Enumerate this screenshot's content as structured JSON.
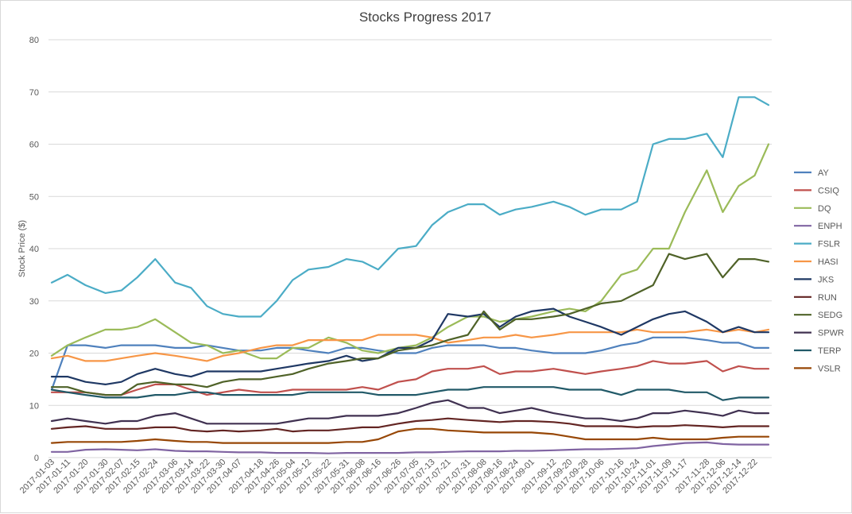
{
  "chart_data": {
    "type": "line",
    "title": "Stocks Progress 2017",
    "xlabel": "",
    "ylabel": "Stock Price ($)",
    "ylim": [
      0,
      80
    ],
    "yticks": [
      0,
      10,
      20,
      30,
      40,
      50,
      60,
      70,
      80
    ],
    "grid": true,
    "legend_position": "right",
    "x_tick_labels": [
      "2017-01-03",
      "2017-01-11",
      "2017-01-20",
      "2017-01-30",
      "2017-02-07",
      "2017-02-15",
      "2017-02-24",
      "2017-03-06",
      "2017-03-14",
      "2017-03-22",
      "2017-03-30",
      "2017-04-07",
      "2017-04-18",
      "2017-04-26",
      "2017-05-04",
      "2017-05-12",
      "2017-05-22",
      "2017-05-31",
      "2017-06-08",
      "2017-06-16",
      "2017-06-26",
      "2017-07-05",
      "2017-07-13",
      "2017-07-21",
      "2017-07-31",
      "2017-08-08",
      "2017-08-16",
      "2017-08-24",
      "2017-09-01",
      "2017-09-12",
      "2017-09-20",
      "2017-09-28",
      "2017-10-06",
      "2017-10-16",
      "2017-10-24",
      "2017-11-01",
      "2017-11-09",
      "2017-11-17",
      "2017-11-28",
      "2017-12-06",
      "2017-12-14",
      "2017-12-22"
    ],
    "x": [
      "2017-01-03",
      "2017-01-11",
      "2017-01-20",
      "2017-01-30",
      "2017-02-07",
      "2017-02-15",
      "2017-02-24",
      "2017-03-06",
      "2017-03-14",
      "2017-03-22",
      "2017-03-30",
      "2017-04-07",
      "2017-04-18",
      "2017-04-26",
      "2017-05-04",
      "2017-05-12",
      "2017-05-22",
      "2017-05-31",
      "2017-06-08",
      "2017-06-16",
      "2017-06-26",
      "2017-07-05",
      "2017-07-13",
      "2017-07-21",
      "2017-07-31",
      "2017-08-08",
      "2017-08-16",
      "2017-08-24",
      "2017-09-01",
      "2017-09-12",
      "2017-09-20",
      "2017-09-28",
      "2017-10-06",
      "2017-10-16",
      "2017-10-24",
      "2017-11-01",
      "2017-11-09",
      "2017-11-17",
      "2017-11-28",
      "2017-12-06",
      "2017-12-14",
      "2017-12-22",
      "2017-12-29"
    ],
    "series": [
      {
        "name": "AY",
        "color": "#4f81bd",
        "values": [
          13.0,
          21.5,
          21.5,
          21.0,
          21.5,
          21.5,
          21.5,
          21.0,
          21.0,
          21.5,
          21.0,
          20.5,
          20.5,
          21.0,
          21.0,
          20.5,
          20.0,
          21.0,
          21.0,
          20.5,
          20.0,
          20.0,
          21.0,
          21.5,
          21.5,
          21.5,
          21.0,
          21.0,
          20.5,
          20.0,
          20.0,
          20.0,
          20.5,
          21.5,
          22.0,
          23.0,
          23.0,
          23.0,
          22.5,
          22.0,
          22.0,
          21.0,
          21.0
        ]
      },
      {
        "name": "CSIQ",
        "color": "#c0504d",
        "values": [
          12.5,
          12.5,
          12.5,
          12.0,
          12.0,
          13.0,
          14.0,
          14.0,
          13.0,
          12.0,
          12.5,
          13.0,
          12.5,
          12.5,
          13.0,
          13.0,
          13.0,
          13.0,
          13.5,
          13.0,
          14.5,
          15.0,
          16.5,
          17.0,
          17.0,
          17.5,
          16.0,
          16.5,
          16.5,
          17.0,
          16.5,
          16.0,
          16.5,
          17.0,
          17.5,
          18.5,
          18.0,
          18.0,
          18.5,
          16.5,
          17.5,
          17.0,
          17.0
        ]
      },
      {
        "name": "DQ",
        "color": "#9bbb59",
        "values": [
          19.5,
          21.5,
          23.0,
          24.5,
          24.5,
          25.0,
          26.5,
          24.0,
          22.0,
          21.5,
          20.0,
          20.5,
          19.0,
          19.0,
          21.0,
          21.0,
          23.0,
          22.0,
          20.5,
          20.0,
          21.0,
          21.5,
          23.0,
          25.0,
          27.0,
          27.0,
          26.0,
          26.5,
          27.0,
          28.0,
          28.5,
          28.0,
          30.0,
          35.0,
          36.0,
          40.0,
          40.0,
          47.0,
          55.0,
          47.0,
          52.0,
          54.0,
          60.0
        ]
      },
      {
        "name": "ENPH",
        "color": "#8064a2",
        "values": [
          1.1,
          1.1,
          1.5,
          1.6,
          1.5,
          1.4,
          1.6,
          1.3,
          1.2,
          1.2,
          1.1,
          1.0,
          1.0,
          0.9,
          0.9,
          0.9,
          0.8,
          0.9,
          0.9,
          0.9,
          0.9,
          1.0,
          1.0,
          1.1,
          1.2,
          1.2,
          1.2,
          1.3,
          1.3,
          1.4,
          1.5,
          1.6,
          1.6,
          1.7,
          1.8,
          2.2,
          2.5,
          2.8,
          2.9,
          2.6,
          2.5,
          2.5,
          2.5
        ]
      },
      {
        "name": "FSLR",
        "color": "#4bacc6",
        "values": [
          33.5,
          35.0,
          33.0,
          31.5,
          32.0,
          34.5,
          38.0,
          33.5,
          32.5,
          29.0,
          27.5,
          27.0,
          27.0,
          30.0,
          34.0,
          36.0,
          36.5,
          38.0,
          37.5,
          36.0,
          40.0,
          40.5,
          44.5,
          47.0,
          48.5,
          48.5,
          46.5,
          47.5,
          48.0,
          49.0,
          48.0,
          46.5,
          47.5,
          47.5,
          49.0,
          60.0,
          61.0,
          61.0,
          62.0,
          57.5,
          69.0,
          69.0,
          67.5
        ]
      },
      {
        "name": "HASI",
        "color": "#f79646",
        "values": [
          19.0,
          19.5,
          18.5,
          18.5,
          19.0,
          19.5,
          20.0,
          19.5,
          19.0,
          18.5,
          19.5,
          20.0,
          21.0,
          21.5,
          21.5,
          22.5,
          22.5,
          22.5,
          22.5,
          23.5,
          23.5,
          23.5,
          23.0,
          22.0,
          22.5,
          23.0,
          23.0,
          23.5,
          23.0,
          23.5,
          24.0,
          24.0,
          24.0,
          24.0,
          24.5,
          24.0,
          24.0,
          24.0,
          24.5,
          24.0,
          24.5,
          24.0,
          24.5
        ]
      },
      {
        "name": "JKS",
        "color": "#1f3864",
        "values": [
          15.5,
          15.5,
          14.5,
          14.0,
          14.5,
          16.0,
          17.0,
          16.0,
          15.5,
          16.5,
          16.5,
          16.5,
          16.5,
          17.0,
          17.5,
          18.0,
          18.5,
          19.5,
          18.5,
          19.0,
          21.0,
          21.0,
          22.5,
          27.5,
          27.0,
          27.5,
          25.0,
          27.0,
          28.0,
          28.5,
          27.0,
          26.0,
          25.0,
          23.5,
          25.0,
          26.5,
          27.5,
          28.0,
          26.0,
          24.0,
          25.0,
          24.0,
          24.0
        ]
      },
      {
        "name": "RUN",
        "color": "#632523",
        "values": [
          5.5,
          5.8,
          6.0,
          5.5,
          5.5,
          5.5,
          5.8,
          5.8,
          5.2,
          5.0,
          5.2,
          5.0,
          5.2,
          5.5,
          5.0,
          5.2,
          5.2,
          5.5,
          5.8,
          5.8,
          6.5,
          7.0,
          7.2,
          7.5,
          7.2,
          7.0,
          6.8,
          7.0,
          7.0,
          6.8,
          6.5,
          6.0,
          6.0,
          6.0,
          5.8,
          6.0,
          6.0,
          6.2,
          6.0,
          5.8,
          6.0,
          6.0,
          6.0
        ]
      },
      {
        "name": "SEDG",
        "color": "#4f6228",
        "values": [
          13.5,
          13.5,
          12.5,
          12.0,
          12.0,
          14.0,
          14.5,
          14.0,
          14.0,
          13.5,
          14.5,
          15.0,
          15.0,
          15.5,
          16.0,
          17.0,
          18.0,
          18.5,
          19.0,
          19.0,
          20.5,
          21.0,
          21.5,
          22.5,
          23.5,
          28.0,
          24.5,
          26.5,
          26.5,
          27.0,
          27.5,
          28.5,
          29.5,
          30.0,
          31.5,
          33.0,
          39.0,
          38.0,
          39.0,
          34.5,
          38.0,
          38.0,
          37.5
        ]
      },
      {
        "name": "SPWR",
        "color": "#403151",
        "values": [
          7.0,
          7.5,
          7.0,
          6.5,
          7.0,
          7.0,
          8.0,
          8.5,
          7.5,
          6.5,
          6.5,
          6.5,
          6.5,
          6.5,
          7.0,
          7.5,
          7.5,
          8.0,
          8.0,
          8.0,
          8.5,
          9.5,
          10.5,
          11.0,
          9.5,
          9.5,
          8.5,
          9.0,
          9.5,
          8.5,
          8.0,
          7.5,
          7.5,
          7.0,
          7.5,
          8.5,
          8.5,
          9.0,
          8.5,
          8.0,
          9.0,
          8.5,
          8.5
        ]
      },
      {
        "name": "TERP",
        "color": "#215968",
        "values": [
          13.0,
          12.5,
          12.0,
          11.5,
          11.5,
          11.5,
          12.0,
          12.0,
          12.5,
          12.5,
          12.0,
          12.0,
          12.0,
          12.0,
          12.0,
          12.5,
          12.5,
          12.5,
          12.5,
          12.0,
          12.0,
          12.0,
          12.5,
          13.0,
          13.0,
          13.5,
          13.5,
          13.5,
          13.5,
          13.5,
          13.0,
          13.0,
          13.0,
          12.0,
          13.0,
          13.0,
          13.0,
          12.5,
          12.5,
          11.0,
          11.5,
          11.5,
          11.5
        ]
      },
      {
        "name": "VSLR",
        "color": "#974706",
        "values": [
          2.8,
          3.0,
          3.0,
          3.0,
          3.0,
          3.2,
          3.5,
          3.2,
          3.0,
          3.0,
          2.8,
          2.8,
          2.8,
          2.8,
          2.8,
          2.8,
          2.8,
          3.0,
          3.0,
          3.5,
          5.0,
          5.5,
          5.5,
          5.2,
          5.0,
          4.8,
          4.8,
          4.8,
          4.8,
          4.5,
          4.0,
          3.5,
          3.5,
          3.5,
          3.5,
          3.8,
          3.5,
          3.5,
          3.5,
          3.8,
          4.0,
          4.0,
          4.0
        ]
      }
    ]
  }
}
